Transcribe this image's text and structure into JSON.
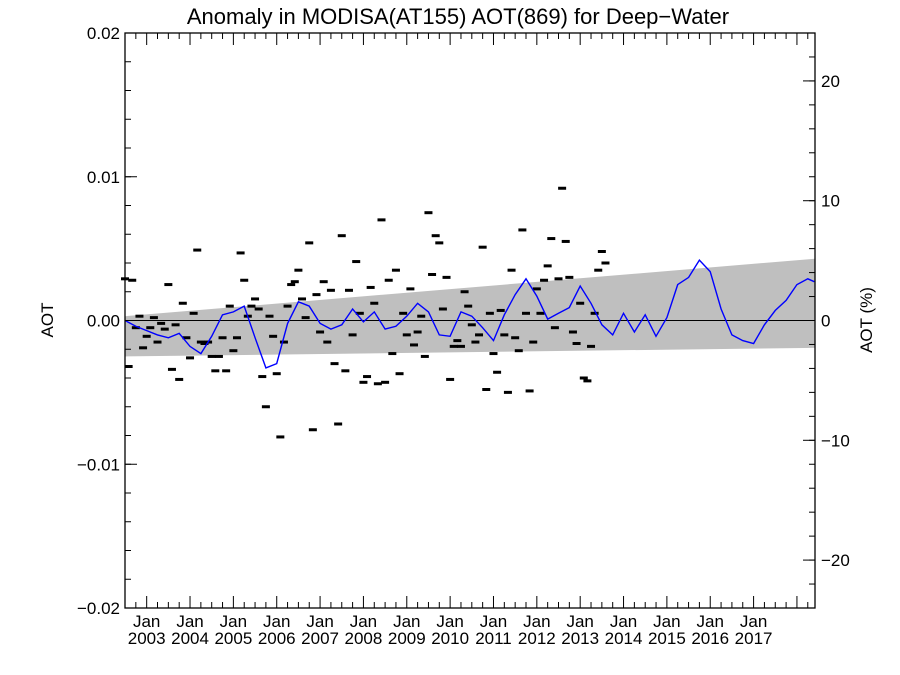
{
  "chart_data": {
    "type": "scatter",
    "title": "Anomaly in MODISA(AT155) AOT(869) for Deep−Water",
    "ylabel_left": "AOT",
    "ylabel_right": "AOT (%)",
    "xlabel": "",
    "x_range": [
      "2002-07-01",
      "2018-06-01"
    ],
    "ylim": [
      -0.02,
      0.02
    ],
    "ylim_right": [
      -24,
      24
    ],
    "y_ticks": [
      "−0.02",
      "−0.01",
      "0.00",
      "0.01",
      "0.02"
    ],
    "y_tick_values": [
      -0.02,
      -0.01,
      0.0,
      0.01,
      0.02
    ],
    "y_right_ticks": [
      "−20",
      "−10",
      "0",
      "10",
      "20"
    ],
    "y_right_tick_values": [
      -20,
      -10,
      0,
      10,
      20
    ],
    "x_ticks": [
      {
        "month": "Jan",
        "year": "2003",
        "date": "2003-01-01"
      },
      {
        "month": "Jan",
        "year": "2004",
        "date": "2004-01-01"
      },
      {
        "month": "Jan",
        "year": "2005",
        "date": "2005-01-01"
      },
      {
        "month": "Jan",
        "year": "2006",
        "date": "2006-01-01"
      },
      {
        "month": "Jan",
        "year": "2007",
        "date": "2007-01-01"
      },
      {
        "month": "Jan",
        "year": "2008",
        "date": "2008-01-01"
      },
      {
        "month": "Jan",
        "year": "2009",
        "date": "2009-01-01"
      },
      {
        "month": "Jan",
        "year": "2010",
        "date": "2010-01-01"
      },
      {
        "month": "Jan",
        "year": "2011",
        "date": "2011-01-01"
      },
      {
        "month": "Jan",
        "year": "2012",
        "date": "2012-01-01"
      },
      {
        "month": "Jan",
        "year": "2013",
        "date": "2013-01-01"
      },
      {
        "month": "Jan",
        "year": "2014",
        "date": "2014-01-01"
      },
      {
        "month": "Jan",
        "year": "2015",
        "date": "2015-01-01"
      },
      {
        "month": "Jan",
        "year": "2016",
        "date": "2016-01-01"
      },
      {
        "month": "Jan",
        "year": "2017",
        "date": "2017-01-01"
      }
    ],
    "uncertainty_band": {
      "x": [
        "2002-07-01",
        "2018-06-01"
      ],
      "upper": [
        0.0003,
        0.0043
      ],
      "lower": [
        -0.0025,
        -0.0019
      ],
      "color": "#bfbfbf"
    },
    "zero_line": 0,
    "series": [
      {
        "kind": "monthly_points",
        "color": "#000000",
        "points": [
          {
            "x": "2002-07-01",
            "y": 0.0029
          },
          {
            "x": "2002-08-01",
            "y": -0.0032
          },
          {
            "x": "2002-09-01",
            "y": 0.0028
          },
          {
            "x": "2002-10-01",
            "y": -0.0005
          },
          {
            "x": "2002-11-01",
            "y": 0.0003
          },
          {
            "x": "2002-12-01",
            "y": -0.0019
          },
          {
            "x": "2003-01-01",
            "y": -0.0011
          },
          {
            "x": "2003-02-01",
            "y": -0.0005
          },
          {
            "x": "2003-03-01",
            "y": 0.0002
          },
          {
            "x": "2003-04-01",
            "y": -0.0015
          },
          {
            "x": "2003-05-01",
            "y": -0.0002
          },
          {
            "x": "2003-06-01",
            "y": -0.0006
          },
          {
            "x": "2003-07-01",
            "y": 0.0025
          },
          {
            "x": "2003-08-01",
            "y": -0.0034
          },
          {
            "x": "2003-09-01",
            "y": -0.0003
          },
          {
            "x": "2003-10-01",
            "y": -0.0041
          },
          {
            "x": "2003-11-01",
            "y": 0.0012
          },
          {
            "x": "2003-12-01",
            "y": -0.0012
          },
          {
            "x": "2004-01-01",
            "y": -0.0026
          },
          {
            "x": "2004-02-01",
            "y": 0.0005
          },
          {
            "x": "2004-03-01",
            "y": 0.0049
          },
          {
            "x": "2004-04-01",
            "y": -0.0015
          },
          {
            "x": "2004-05-01",
            "y": -0.0016
          },
          {
            "x": "2004-06-01",
            "y": -0.0015
          },
          {
            "x": "2004-07-01",
            "y": -0.0025
          },
          {
            "x": "2004-08-01",
            "y": -0.0035
          },
          {
            "x": "2004-09-01",
            "y": -0.0025
          },
          {
            "x": "2004-10-01",
            "y": -0.0012
          },
          {
            "x": "2004-11-01",
            "y": -0.0035
          },
          {
            "x": "2004-12-01",
            "y": 0.001
          },
          {
            "x": "2005-01-01",
            "y": -0.0021
          },
          {
            "x": "2005-02-01",
            "y": -0.0012
          },
          {
            "x": "2005-03-01",
            "y": 0.0047
          },
          {
            "x": "2005-04-01",
            "y": 0.0028
          },
          {
            "x": "2005-05-01",
            "y": 0.0003
          },
          {
            "x": "2005-06-01",
            "y": 0.001
          },
          {
            "x": "2005-07-01",
            "y": 0.0015
          },
          {
            "x": "2005-08-01",
            "y": 0.0008
          },
          {
            "x": "2005-09-01",
            "y": -0.0039
          },
          {
            "x": "2005-10-01",
            "y": -0.006
          },
          {
            "x": "2005-11-01",
            "y": 0.0003
          },
          {
            "x": "2005-12-01",
            "y": -0.0011
          },
          {
            "x": "2006-01-01",
            "y": -0.0037
          },
          {
            "x": "2006-02-01",
            "y": -0.0081
          },
          {
            "x": "2006-03-01",
            "y": -0.0015
          },
          {
            "x": "2006-04-01",
            "y": 0.001
          },
          {
            "x": "2006-05-01",
            "y": 0.0025
          },
          {
            "x": "2006-06-01",
            "y": 0.0027
          },
          {
            "x": "2006-07-01",
            "y": 0.0035
          },
          {
            "x": "2006-08-01",
            "y": 0.0015
          },
          {
            "x": "2006-09-01",
            "y": 0.0002
          },
          {
            "x": "2006-10-01",
            "y": 0.0054
          },
          {
            "x": "2006-11-01",
            "y": -0.0076
          },
          {
            "x": "2006-12-01",
            "y": 0.0018
          },
          {
            "x": "2007-01-01",
            "y": -0.0008
          },
          {
            "x": "2007-02-01",
            "y": 0.0027
          },
          {
            "x": "2007-03-01",
            "y": -0.0015
          },
          {
            "x": "2007-04-01",
            "y": 0.0021
          },
          {
            "x": "2007-05-01",
            "y": -0.003
          },
          {
            "x": "2007-06-01",
            "y": -0.0072
          },
          {
            "x": "2007-07-01",
            "y": 0.0059
          },
          {
            "x": "2007-08-01",
            "y": -0.0035
          },
          {
            "x": "2007-09-01",
            "y": 0.0021
          },
          {
            "x": "2007-10-01",
            "y": -0.001
          },
          {
            "x": "2007-11-01",
            "y": 0.0041
          },
          {
            "x": "2007-12-01",
            "y": 0.0005
          },
          {
            "x": "2008-01-01",
            "y": -0.0043
          },
          {
            "x": "2008-02-01",
            "y": -0.0039
          },
          {
            "x": "2008-03-01",
            "y": 0.0023
          },
          {
            "x": "2008-04-01",
            "y": 0.0012
          },
          {
            "x": "2008-05-01",
            "y": -0.0044
          },
          {
            "x": "2008-06-01",
            "y": 0.007
          },
          {
            "x": "2008-07-01",
            "y": -0.0043
          },
          {
            "x": "2008-08-01",
            "y": 0.0028
          },
          {
            "x": "2008-09-01",
            "y": -0.0023
          },
          {
            "x": "2008-10-01",
            "y": 0.0035
          },
          {
            "x": "2008-11-01",
            "y": -0.0037
          },
          {
            "x": "2008-12-01",
            "y": 0.0005
          },
          {
            "x": "2009-01-01",
            "y": -0.001
          },
          {
            "x": "2009-02-01",
            "y": 0.0022
          },
          {
            "x": "2009-03-01",
            "y": -0.0017
          },
          {
            "x": "2009-04-01",
            "y": -0.0008
          },
          {
            "x": "2009-05-01",
            "y": 0.0003
          },
          {
            "x": "2009-06-01",
            "y": -0.0025
          },
          {
            "x": "2009-07-01",
            "y": 0.0075
          },
          {
            "x": "2009-08-01",
            "y": 0.0032
          },
          {
            "x": "2009-09-01",
            "y": 0.0059
          },
          {
            "x": "2009-10-01",
            "y": 0.0054
          },
          {
            "x": "2009-11-01",
            "y": 0.0008
          },
          {
            "x": "2009-12-01",
            "y": 0.003
          },
          {
            "x": "2010-01-01",
            "y": -0.0041
          },
          {
            "x": "2010-02-01",
            "y": -0.0018
          },
          {
            "x": "2010-03-01",
            "y": -0.0014
          },
          {
            "x": "2010-04-01",
            "y": -0.0018
          },
          {
            "x": "2010-05-01",
            "y": 0.002
          },
          {
            "x": "2010-06-01",
            "y": 0.001
          },
          {
            "x": "2010-07-01",
            "y": -0.0003
          },
          {
            "x": "2010-08-01",
            "y": -0.0015
          },
          {
            "x": "2010-09-01",
            "y": -0.001
          },
          {
            "x": "2010-10-01",
            "y": 0.0051
          },
          {
            "x": "2010-11-01",
            "y": -0.0048
          },
          {
            "x": "2010-12-01",
            "y": 0.0005
          },
          {
            "x": "2011-01-01",
            "y": -0.0023
          },
          {
            "x": "2011-02-01",
            "y": -0.0036
          },
          {
            "x": "2011-03-01",
            "y": 0.0007
          },
          {
            "x": "2011-04-01",
            "y": -0.001
          },
          {
            "x": "2011-05-01",
            "y": -0.005
          },
          {
            "x": "2011-06-01",
            "y": 0.0035
          },
          {
            "x": "2011-07-01",
            "y": -0.0012
          },
          {
            "x": "2011-08-01",
            "y": -0.0021
          },
          {
            "x": "2011-09-01",
            "y": 0.0063
          },
          {
            "x": "2011-10-01",
            "y": 0.0005
          },
          {
            "x": "2011-11-01",
            "y": -0.0049
          },
          {
            "x": "2011-12-01",
            "y": -0.0015
          },
          {
            "x": "2012-01-01",
            "y": 0.0022
          },
          {
            "x": "2012-02-01",
            "y": 0.0005
          },
          {
            "x": "2012-03-01",
            "y": 0.0028
          },
          {
            "x": "2012-04-01",
            "y": 0.0038
          },
          {
            "x": "2012-05-01",
            "y": 0.0057
          },
          {
            "x": "2012-06-01",
            "y": -0.0005
          },
          {
            "x": "2012-07-01",
            "y": 0.0029
          },
          {
            "x": "2012-08-01",
            "y": 0.0092
          },
          {
            "x": "2012-09-01",
            "y": 0.0055
          },
          {
            "x": "2012-10-01",
            "y": 0.003
          },
          {
            "x": "2012-11-01",
            "y": -0.0008
          },
          {
            "x": "2012-12-01",
            "y": -0.0016
          },
          {
            "x": "2013-01-01",
            "y": 0.0012
          },
          {
            "x": "2013-02-01",
            "y": -0.004
          },
          {
            "x": "2013-03-01",
            "y": -0.0042
          },
          {
            "x": "2013-04-01",
            "y": -0.0018
          },
          {
            "x": "2013-05-01",
            "y": 0.0005
          },
          {
            "x": "2013-06-01",
            "y": 0.0035
          },
          {
            "x": "2013-07-01",
            "y": 0.0048
          },
          {
            "x": "2013-08-01",
            "y": 0.004
          }
        ]
      },
      {
        "kind": "running_mean",
        "color": "#0000ff",
        "x": [
          2002.5,
          2002.75,
          2003.0,
          2003.25,
          2003.5,
          2003.75,
          2004.0,
          2004.25,
          2004.5,
          2004.75,
          2005.0,
          2005.25,
          2005.5,
          2005.75,
          2006.0,
          2006.25,
          2006.5,
          2006.75,
          2007.0,
          2007.25,
          2007.5,
          2007.75,
          2008.0,
          2008.25,
          2008.5,
          2008.75,
          2009.0,
          2009.25,
          2009.5,
          2009.75,
          2010.0,
          2010.25,
          2010.5,
          2010.75,
          2011.0,
          2011.25,
          2011.5,
          2011.75,
          2012.0,
          2012.25,
          2012.5,
          2012.75,
          2013.0,
          2013.25,
          2013.5,
          2013.75,
          2014.0,
          2014.25,
          2014.5,
          2014.75,
          2015.0,
          2015.25,
          2015.5,
          2015.75,
          2016.0,
          2016.25,
          2016.5,
          2016.75,
          2017.0,
          2017.25,
          2017.5,
          2017.75,
          2018.0,
          2018.25,
          2018.4
        ],
        "values": [
          0.0,
          -0.0004,
          -0.0007,
          -0.001,
          -0.0012,
          -0.0009,
          -0.0018,
          -0.0023,
          -0.0011,
          0.0004,
          0.0006,
          0.001,
          -0.0012,
          -0.0033,
          -0.003,
          -0.0002,
          0.0013,
          0.001,
          -0.0002,
          -0.0006,
          -0.0003,
          0.0008,
          -0.0001,
          0.0006,
          -0.0006,
          -0.0004,
          0.0003,
          0.0012,
          0.0006,
          -0.001,
          -0.0011,
          0.0006,
          0.0003,
          -0.0005,
          -0.0014,
          0.0004,
          0.0018,
          0.0029,
          0.0017,
          0.0001,
          0.0005,
          0.0009,
          0.0024,
          0.0012,
          -0.0003,
          -0.001,
          0.0005,
          -0.0008,
          0.0004,
          -0.0011,
          0.0002,
          0.0025,
          0.003,
          0.0042,
          0.0034,
          0.0008,
          -0.001,
          -0.0014,
          -0.0016,
          -0.0003,
          0.0007,
          0.0014,
          0.0025,
          0.0029,
          0.0027
        ]
      }
    ],
    "grid": false,
    "legend": "none"
  }
}
